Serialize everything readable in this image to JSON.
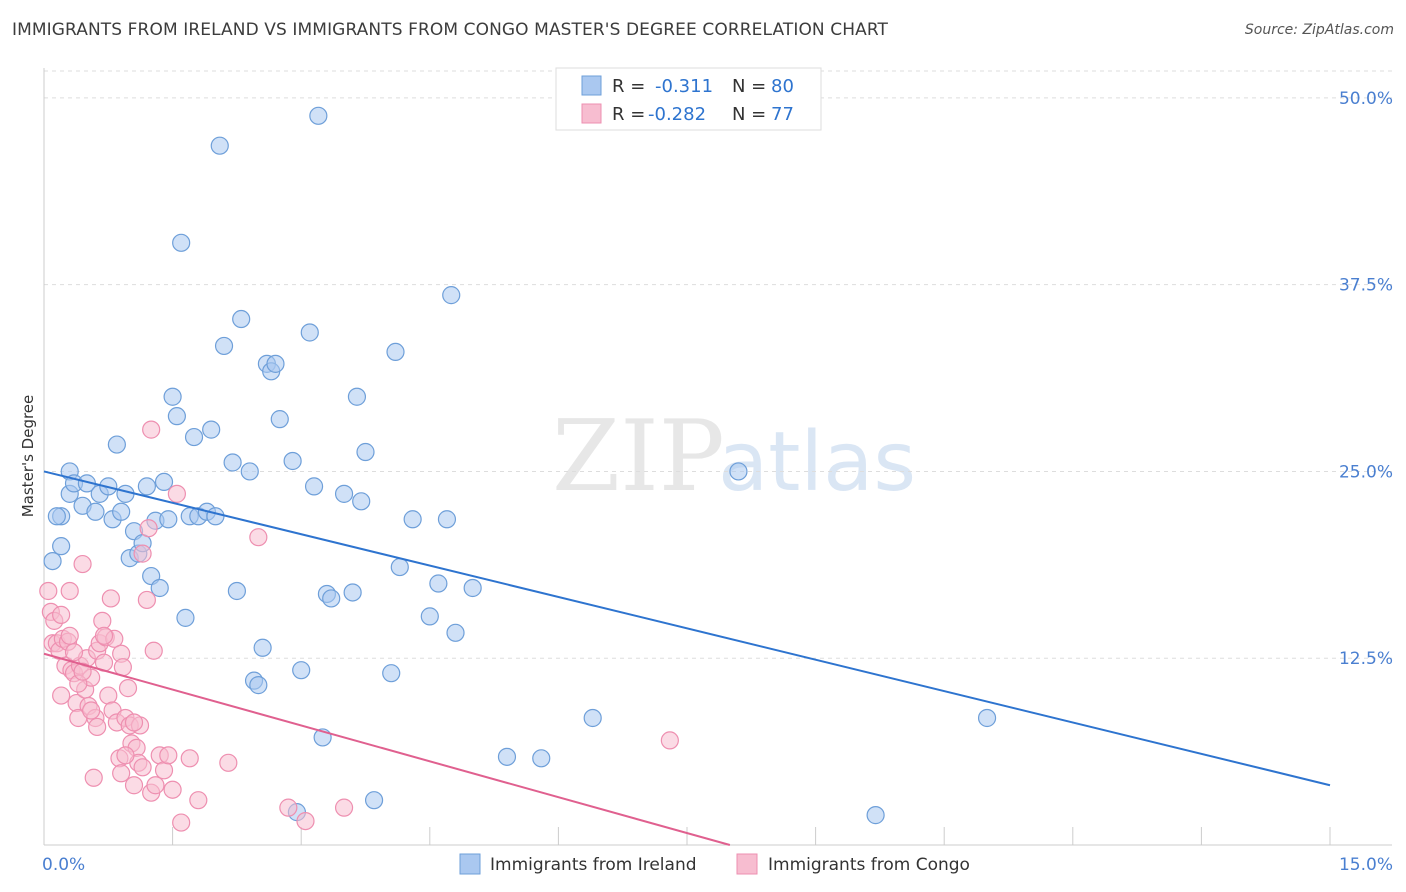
{
  "title": "IMMIGRANTS FROM IRELAND VS IMMIGRANTS FROM CONGO MASTER'S DEGREE CORRELATION CHART",
  "source": "Source: ZipAtlas.com",
  "watermark": {
    "zip": "ZIP",
    "atlas": "atlas"
  },
  "colors": {
    "ireland_fill": "#aac8f0",
    "ireland_stroke": "#6e9fd9",
    "ireland_line": "#2e74cf",
    "congo_fill": "#f7bdd0",
    "congo_stroke": "#ee8fb0",
    "congo_line": "#e0608f",
    "tick_text": "#4a7fd0",
    "grid": "#dddddd"
  },
  "legend": {
    "ireland": {
      "r_label": "R =",
      "r_value": "-0.311",
      "n_label": "N =",
      "n_value": "80"
    },
    "congo": {
      "r_label": "R =",
      "r_value": "-0.282",
      "n_label": "N =",
      "n_value": "77"
    }
  },
  "chart_data": {
    "type": "scatter",
    "xlabel": "",
    "ylabel": "Master's Degree",
    "xlim": [
      0,
      15
    ],
    "ylim": [
      0,
      52
    ],
    "x_tick_labels": [
      "0.0%",
      "15.0%"
    ],
    "y_ticks": [
      12.5,
      25.0,
      37.5,
      50.0
    ],
    "y_tick_labels": [
      "12.5%",
      "25.0%",
      "37.5%",
      "50.0%"
    ],
    "legend_position": "top-center",
    "series": [
      {
        "name": "Immigrants from Ireland",
        "trend": {
          "x": [
            0,
            15
          ],
          "y": [
            25.0,
            4.0
          ]
        },
        "points": [
          [
            0.1,
            19.0
          ],
          [
            0.2,
            20.0
          ],
          [
            0.2,
            22.0
          ],
          [
            0.3,
            23.5
          ],
          [
            0.3,
            25.0
          ],
          [
            0.35,
            24.2
          ],
          [
            0.45,
            22.7
          ],
          [
            0.5,
            24.2
          ],
          [
            0.6,
            22.3
          ],
          [
            0.65,
            23.5
          ],
          [
            0.8,
            21.8
          ],
          [
            0.85,
            26.8
          ],
          [
            0.9,
            22.3
          ],
          [
            0.95,
            23.5
          ],
          [
            1.0,
            19.2
          ],
          [
            1.05,
            21.0
          ],
          [
            1.1,
            19.5
          ],
          [
            1.2,
            24.0
          ],
          [
            1.25,
            18.0
          ],
          [
            1.3,
            21.7
          ],
          [
            1.35,
            17.2
          ],
          [
            1.4,
            24.3
          ],
          [
            1.5,
            30.0
          ],
          [
            1.55,
            28.7
          ],
          [
            1.6,
            40.3
          ],
          [
            1.65,
            15.2
          ],
          [
            1.7,
            22.0
          ],
          [
            1.75,
            27.3
          ],
          [
            1.8,
            22.0
          ],
          [
            1.9,
            22.3
          ],
          [
            1.95,
            27.8
          ],
          [
            2.0,
            22.0
          ],
          [
            2.05,
            46.8
          ],
          [
            2.1,
            33.4
          ],
          [
            2.2,
            25.6
          ],
          [
            2.25,
            17.0
          ],
          [
            2.3,
            35.2
          ],
          [
            2.4,
            25.0
          ],
          [
            2.45,
            11.0
          ],
          [
            2.5,
            10.7
          ],
          [
            2.55,
            13.2
          ],
          [
            2.6,
            32.2
          ],
          [
            2.65,
            31.7
          ],
          [
            2.7,
            32.2
          ],
          [
            2.75,
            28.5
          ],
          [
            2.9,
            25.7
          ],
          [
            2.95,
            2.2
          ],
          [
            3.0,
            11.7
          ],
          [
            3.1,
            34.3
          ],
          [
            3.15,
            24.0
          ],
          [
            3.2,
            48.8
          ],
          [
            3.25,
            7.2
          ],
          [
            3.3,
            16.8
          ],
          [
            3.35,
            16.5
          ],
          [
            3.5,
            23.5
          ],
          [
            3.6,
            16.9
          ],
          [
            3.65,
            30.0
          ],
          [
            3.7,
            23.0
          ],
          [
            3.75,
            26.3
          ],
          [
            3.85,
            3.0
          ],
          [
            4.05,
            11.5
          ],
          [
            4.1,
            33.0
          ],
          [
            4.15,
            18.6
          ],
          [
            4.3,
            21.8
          ],
          [
            4.5,
            15.3
          ],
          [
            4.6,
            17.5
          ],
          [
            4.7,
            21.8
          ],
          [
            4.75,
            36.8
          ],
          [
            4.8,
            14.2
          ],
          [
            5.0,
            17.2
          ],
          [
            5.4,
            5.9
          ],
          [
            5.8,
            5.8
          ],
          [
            6.4,
            8.5
          ],
          [
            8.1,
            25.0
          ],
          [
            9.7,
            2.0
          ],
          [
            11.0,
            8.5
          ],
          [
            0.15,
            22.0
          ],
          [
            1.15,
            20.2
          ],
          [
            0.75,
            24.0
          ],
          [
            1.45,
            21.8
          ]
        ]
      },
      {
        "name": "Immigrants from Congo",
        "trend": {
          "x": [
            0,
            8.0
          ],
          "y": [
            12.8,
            0.0
          ]
        },
        "points": [
          [
            0.05,
            17.0
          ],
          [
            0.08,
            15.6
          ],
          [
            0.1,
            13.5
          ],
          [
            0.12,
            15.0
          ],
          [
            0.15,
            13.5
          ],
          [
            0.18,
            13.0
          ],
          [
            0.2,
            15.4
          ],
          [
            0.22,
            13.8
          ],
          [
            0.25,
            12.0
          ],
          [
            0.28,
            13.6
          ],
          [
            0.3,
            17.0
          ],
          [
            0.32,
            11.7
          ],
          [
            0.35,
            11.5
          ],
          [
            0.38,
            9.5
          ],
          [
            0.4,
            8.5
          ],
          [
            0.42,
            12.0
          ],
          [
            0.45,
            18.8
          ],
          [
            0.48,
            10.4
          ],
          [
            0.5,
            12.5
          ],
          [
            0.52,
            9.3
          ],
          [
            0.55,
            11.2
          ],
          [
            0.58,
            4.5
          ],
          [
            0.6,
            8.5
          ],
          [
            0.62,
            13.0
          ],
          [
            0.65,
            13.5
          ],
          [
            0.68,
            15.0
          ],
          [
            0.7,
            12.2
          ],
          [
            0.72,
            13.9
          ],
          [
            0.75,
            10.0
          ],
          [
            0.78,
            16.5
          ],
          [
            0.8,
            9.0
          ],
          [
            0.82,
            13.8
          ],
          [
            0.85,
            8.2
          ],
          [
            0.88,
            5.8
          ],
          [
            0.9,
            12.8
          ],
          [
            0.92,
            11.9
          ],
          [
            0.95,
            8.5
          ],
          [
            0.98,
            10.5
          ],
          [
            1.0,
            8.0
          ],
          [
            1.02,
            6.8
          ],
          [
            1.05,
            4.0
          ],
          [
            1.08,
            6.5
          ],
          [
            1.1,
            5.5
          ],
          [
            1.12,
            8.0
          ],
          [
            1.15,
            19.5
          ],
          [
            1.2,
            16.4
          ],
          [
            1.22,
            21.2
          ],
          [
            1.25,
            3.5
          ],
          [
            1.28,
            13.0
          ],
          [
            1.3,
            4.0
          ],
          [
            1.35,
            6.0
          ],
          [
            1.4,
            5.0
          ],
          [
            1.45,
            6.0
          ],
          [
            1.5,
            3.7
          ],
          [
            1.55,
            23.5
          ],
          [
            1.6,
            1.5
          ],
          [
            1.7,
            5.8
          ],
          [
            1.8,
            3.0
          ],
          [
            2.15,
            5.5
          ],
          [
            2.5,
            20.6
          ],
          [
            2.85,
            2.5
          ],
          [
            3.05,
            1.6
          ],
          [
            3.5,
            2.5
          ],
          [
            7.3,
            7.0
          ],
          [
            1.25,
            27.8
          ],
          [
            0.55,
            9.0
          ],
          [
            0.3,
            14.0
          ],
          [
            0.4,
            10.8
          ],
          [
            0.9,
            4.8
          ],
          [
            1.05,
            8.2
          ],
          [
            0.7,
            14.0
          ],
          [
            0.62,
            7.9
          ],
          [
            1.15,
            5.2
          ],
          [
            0.45,
            11.6
          ],
          [
            0.35,
            12.9
          ],
          [
            0.2,
            10.0
          ],
          [
            0.95,
            6.0
          ]
        ]
      }
    ]
  }
}
